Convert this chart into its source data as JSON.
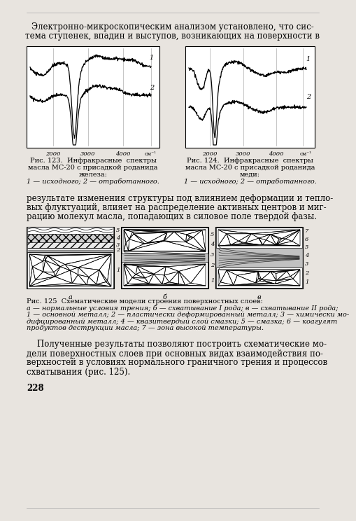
{
  "bg_color": "#e8e4df",
  "text_color": "#111111",
  "title_lines": [
    "Электронно-микроскопическим анализом установлено, что сис-",
    "тема ступенек, впадин и выступов, возникающих на поверхности в"
  ],
  "mid_lines": [
    "результате изменения структуры под влиянием деформации и тепло-",
    "вых флуктуаций, влияет на распределение активных центров и миг-",
    "рацию молекул масла, попадающих в силовое поле твердой фазы."
  ],
  "fig123_cap": [
    "Рис. 123.  Инфракрасные  спектры",
    "масла МС-20 с присадкой роданида",
    "железа:",
    "1 — исходного; 2 — отработанного."
  ],
  "fig124_cap": [
    "Рис. 124.  Инфракрасные  спектры",
    "масла МС-20 с присадкой роданида",
    "меди:",
    "1 — исходного; 2 — отработанного."
  ],
  "fig125_cap": [
    "Рис. 125  Схематические модели строения поверхностных слоев:",
    "а — нормальные условия трения; б — схватывание I рода; в — схватывание II рода;",
    "1 — основной металл; 2 — пластически деформированный металл; 3 — химически мо-",
    "дифцированный металл; 4 — квазитвердый слой смазки; 5 — смазка; 6 — коагулят",
    "продуктов деструкции масла; 7 — зона высокой температуры."
  ],
  "bottom_lines": [
    "    Полученные результаты позволяют построить схематические мо-",
    "дели поверхностных слоев при основных видах взаимодействия по-",
    "верхностей в условиях нормального граничного трения и процессов",
    "схватывания (рис. 125)."
  ],
  "page_num": "228"
}
